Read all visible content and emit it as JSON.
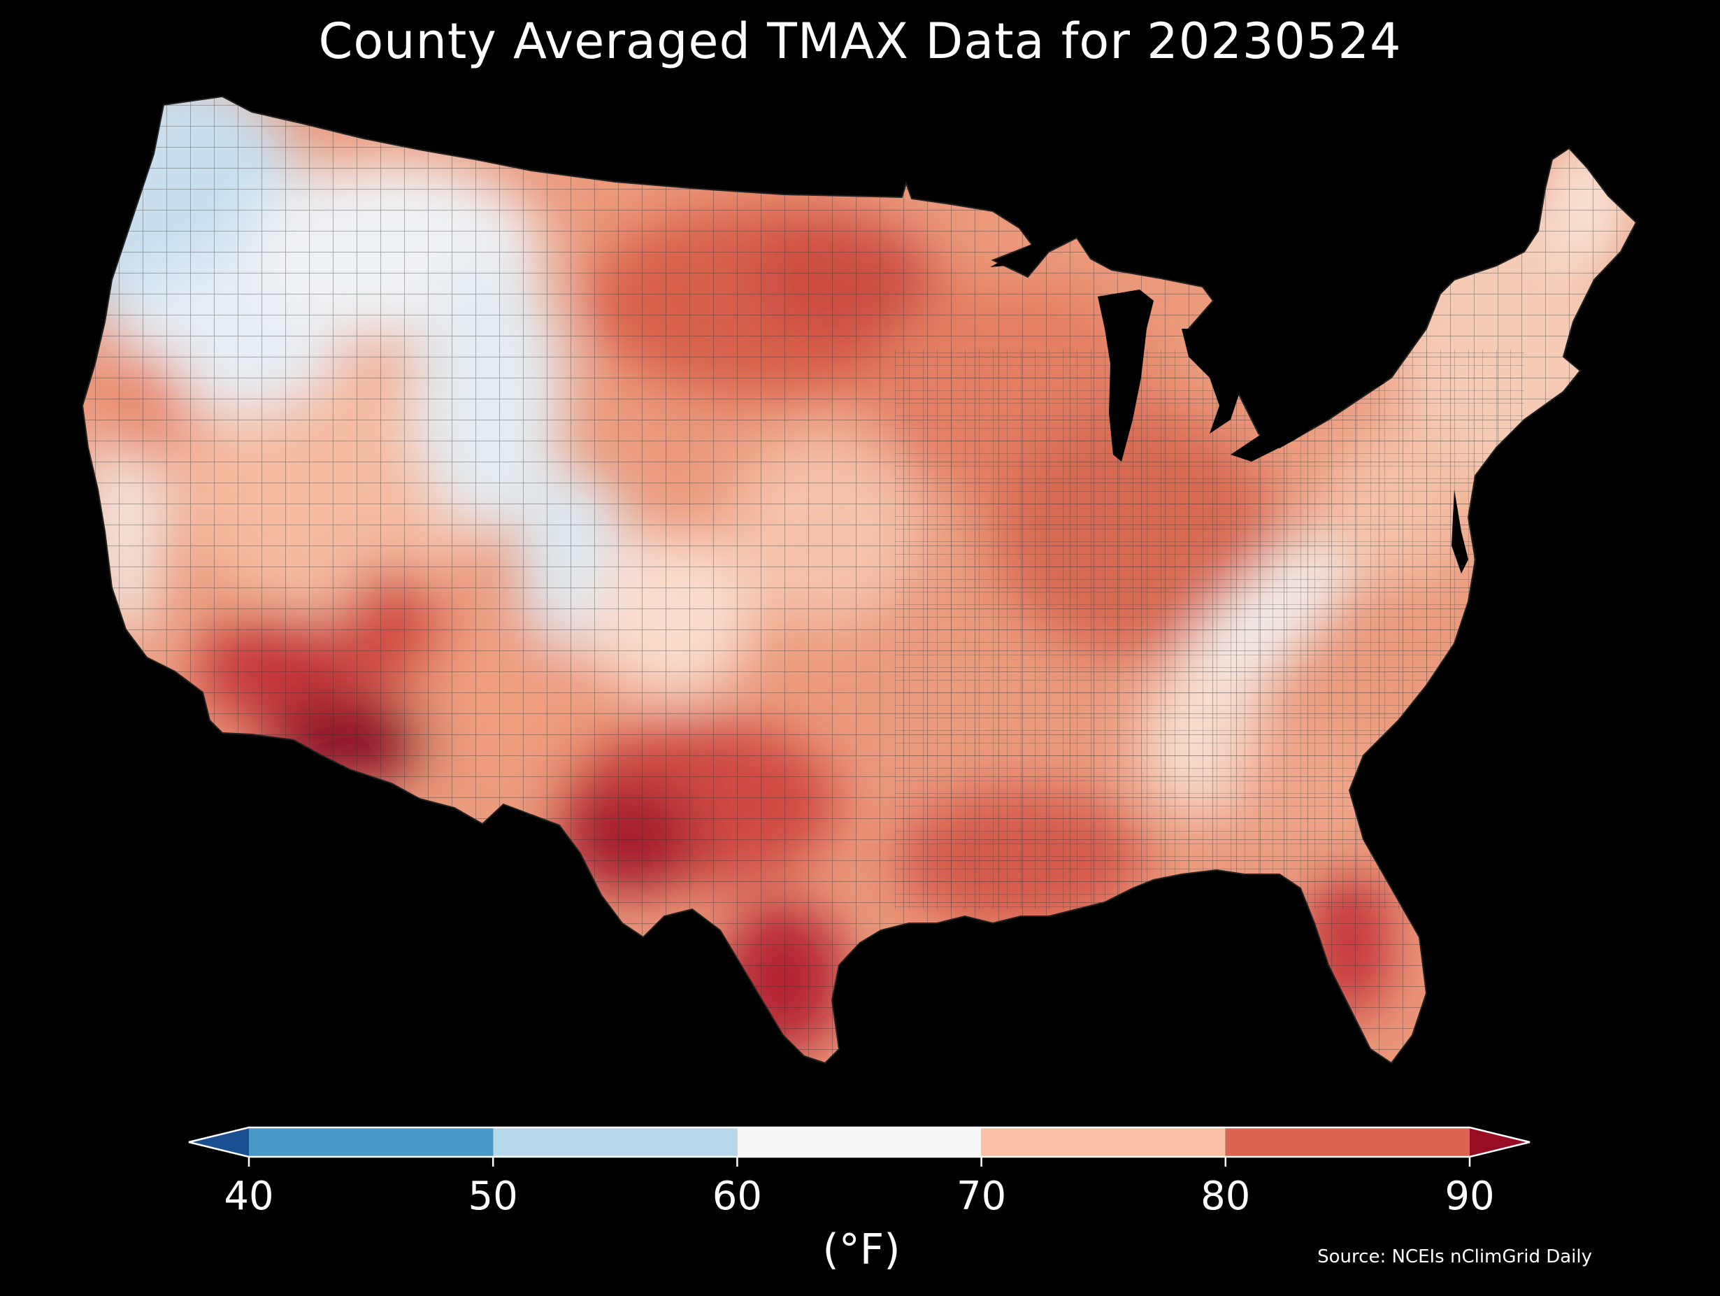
{
  "title": "County Averaged TMAX Data for 20230524",
  "colorbar": {
    "unit_label": "(°F)",
    "ticks": [
      "40",
      "50",
      "60",
      "70",
      "80",
      "90"
    ],
    "range": [
      40,
      90
    ],
    "extend": "both",
    "bins": [
      {
        "min": null,
        "max": 40,
        "color": "#1a4f91"
      },
      {
        "min": 40,
        "max": 50,
        "color": "#4a98c9"
      },
      {
        "min": 50,
        "max": 60,
        "color": "#b7d7ea"
      },
      {
        "min": 60,
        "max": 70,
        "color": "#f6f6f6"
      },
      {
        "min": 70,
        "max": 80,
        "color": "#f9c0a6"
      },
      {
        "min": 80,
        "max": 90,
        "color": "#d9644f"
      },
      {
        "min": 90,
        "max": null,
        "color": "#980d24"
      }
    ]
  },
  "source": "Source: NCEIs nClimGrid Daily",
  "map": {
    "region": "Contiguous United States",
    "variable": "TMAX",
    "aggregation": "county average",
    "background_color": "#000000",
    "border_color": "#1a1a1a",
    "regional_temperatures_f": [
      {
        "region": "Pacific Northwest coast",
        "tmax": 55
      },
      {
        "region": "Northern Rockies",
        "tmax": 62
      },
      {
        "region": "Colorado Rockies",
        "tmax": 58
      },
      {
        "region": "Northern Plains",
        "tmax": 84
      },
      {
        "region": "Central Plains",
        "tmax": 74
      },
      {
        "region": "Midwest",
        "tmax": 80
      },
      {
        "region": "Ohio Valley",
        "tmax": 82
      },
      {
        "region": "Appalachians",
        "tmax": 66
      },
      {
        "region": "Northeast",
        "tmax": 72
      },
      {
        "region": "Southeast",
        "tmax": 76
      },
      {
        "region": "Florida",
        "tmax": 88
      },
      {
        "region": "Gulf Coast",
        "tmax": 84
      },
      {
        "region": "South Texas",
        "tmax": 90
      },
      {
        "region": "Southern Arizona",
        "tmax": 95
      },
      {
        "region": "Great Basin",
        "tmax": 72
      },
      {
        "region": "Central Valley California",
        "tmax": 78
      }
    ]
  }
}
